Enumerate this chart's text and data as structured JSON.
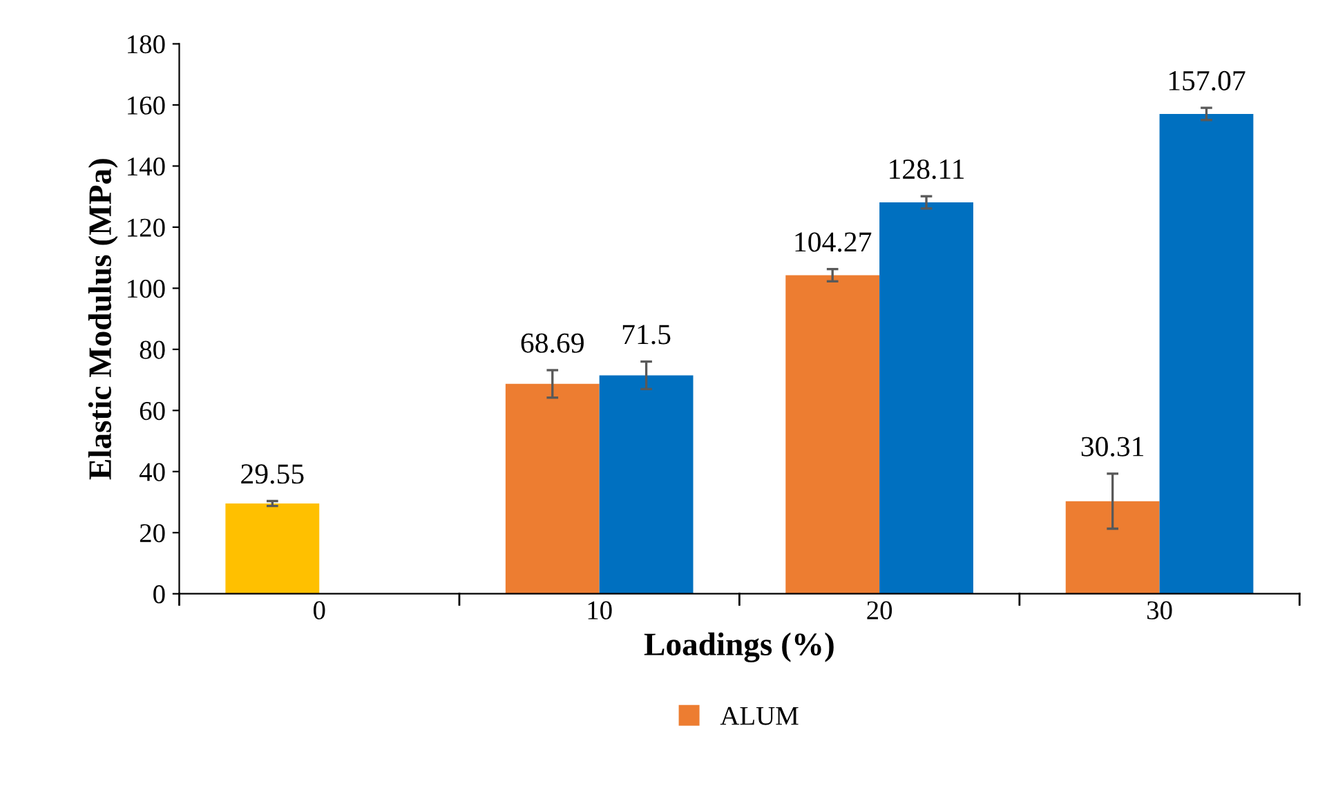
{
  "chart_data": {
    "type": "bar",
    "xlabel": "Loadings (%)",
    "ylabel": "Elastic Modulus (MPa)",
    "categories": [
      "0",
      "10",
      "20",
      "30"
    ],
    "series": [
      {
        "name": "ALUM",
        "color": "#ed7d31",
        "colors": [
          "#ffc000",
          "#ed7d31",
          "#ed7d31",
          "#ed7d31"
        ],
        "values": [
          29.55,
          68.69,
          104.27,
          30.31
        ],
        "errors": [
          0.8,
          4.5,
          2,
          9
        ]
      },
      {
        "color": "#0070c0",
        "values": [
          null,
          71.5,
          128.11,
          157.07
        ],
        "errors": [
          null,
          4.5,
          2,
          2
        ]
      }
    ],
    "ylim": [
      0,
      180
    ],
    "yticks": [
      0,
      20,
      40,
      60,
      80,
      100,
      120,
      140,
      160,
      180
    ],
    "data_labels": true,
    "grid": false,
    "legend": "bottom"
  }
}
